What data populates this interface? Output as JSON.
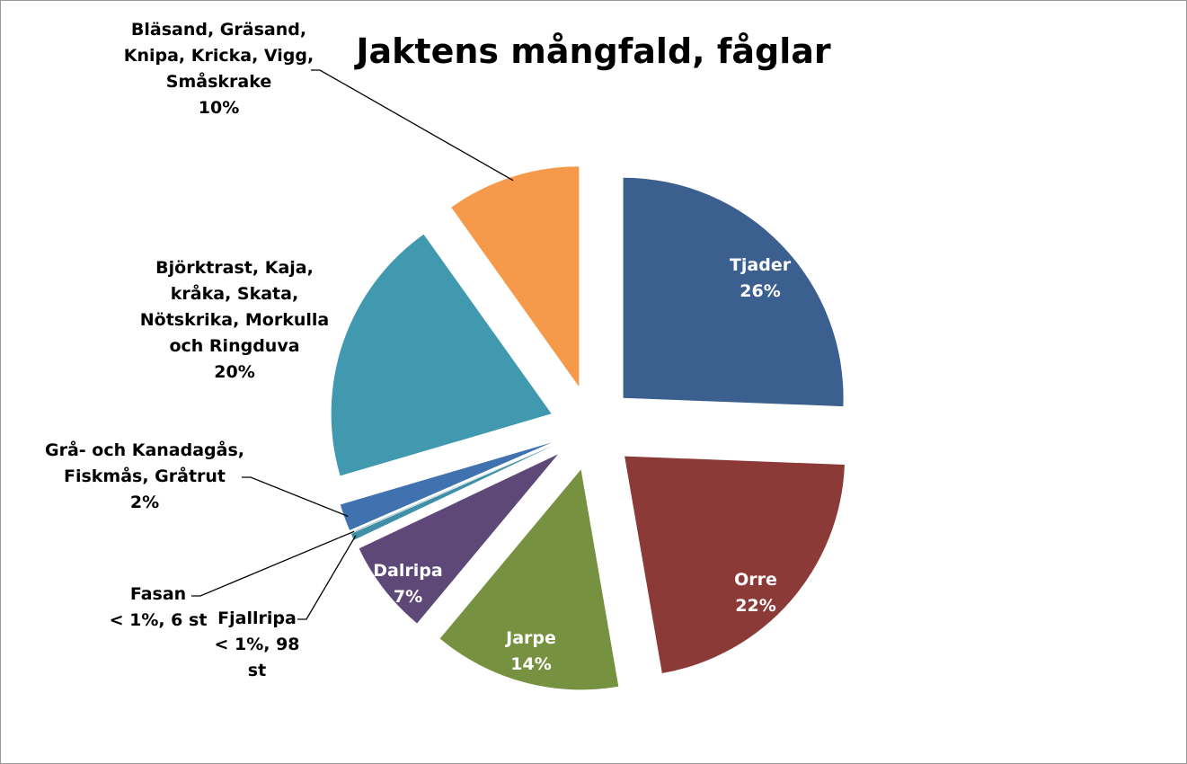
{
  "chart_data": {
    "type": "pie",
    "title": "Jaktens mångfald, fåglar",
    "categories": [
      "Tjader",
      "Orre",
      "Jarpe",
      "Dalripa",
      "Fjallripa",
      "Fasan",
      "Grå- och Kanadagås, Fiskmås, Gråtrut",
      "Björktrast, Kaja, kråka, Skata, Nötskrika, Morkulla och Ringduva",
      "Bläsand, Gräsand, Knipa, Kricka, Vigg, Småskrake"
    ],
    "values": [
      26,
      22,
      14,
      7,
      0.5,
      0.03,
      2,
      20,
      10
    ],
    "value_labels": [
      "26%",
      "22%",
      "14%",
      "7%",
      "< 1%, 98 st",
      "< 1%, 6 st",
      "2%",
      "20%",
      "10%"
    ],
    "colors": [
      "#3b5f8f",
      "#8b3a37",
      "#76913f",
      "#5e4878",
      "#3f8fa6",
      "#2c6f80",
      "#3f72ae",
      "#4199b0",
      "#f59a4a"
    ]
  }
}
